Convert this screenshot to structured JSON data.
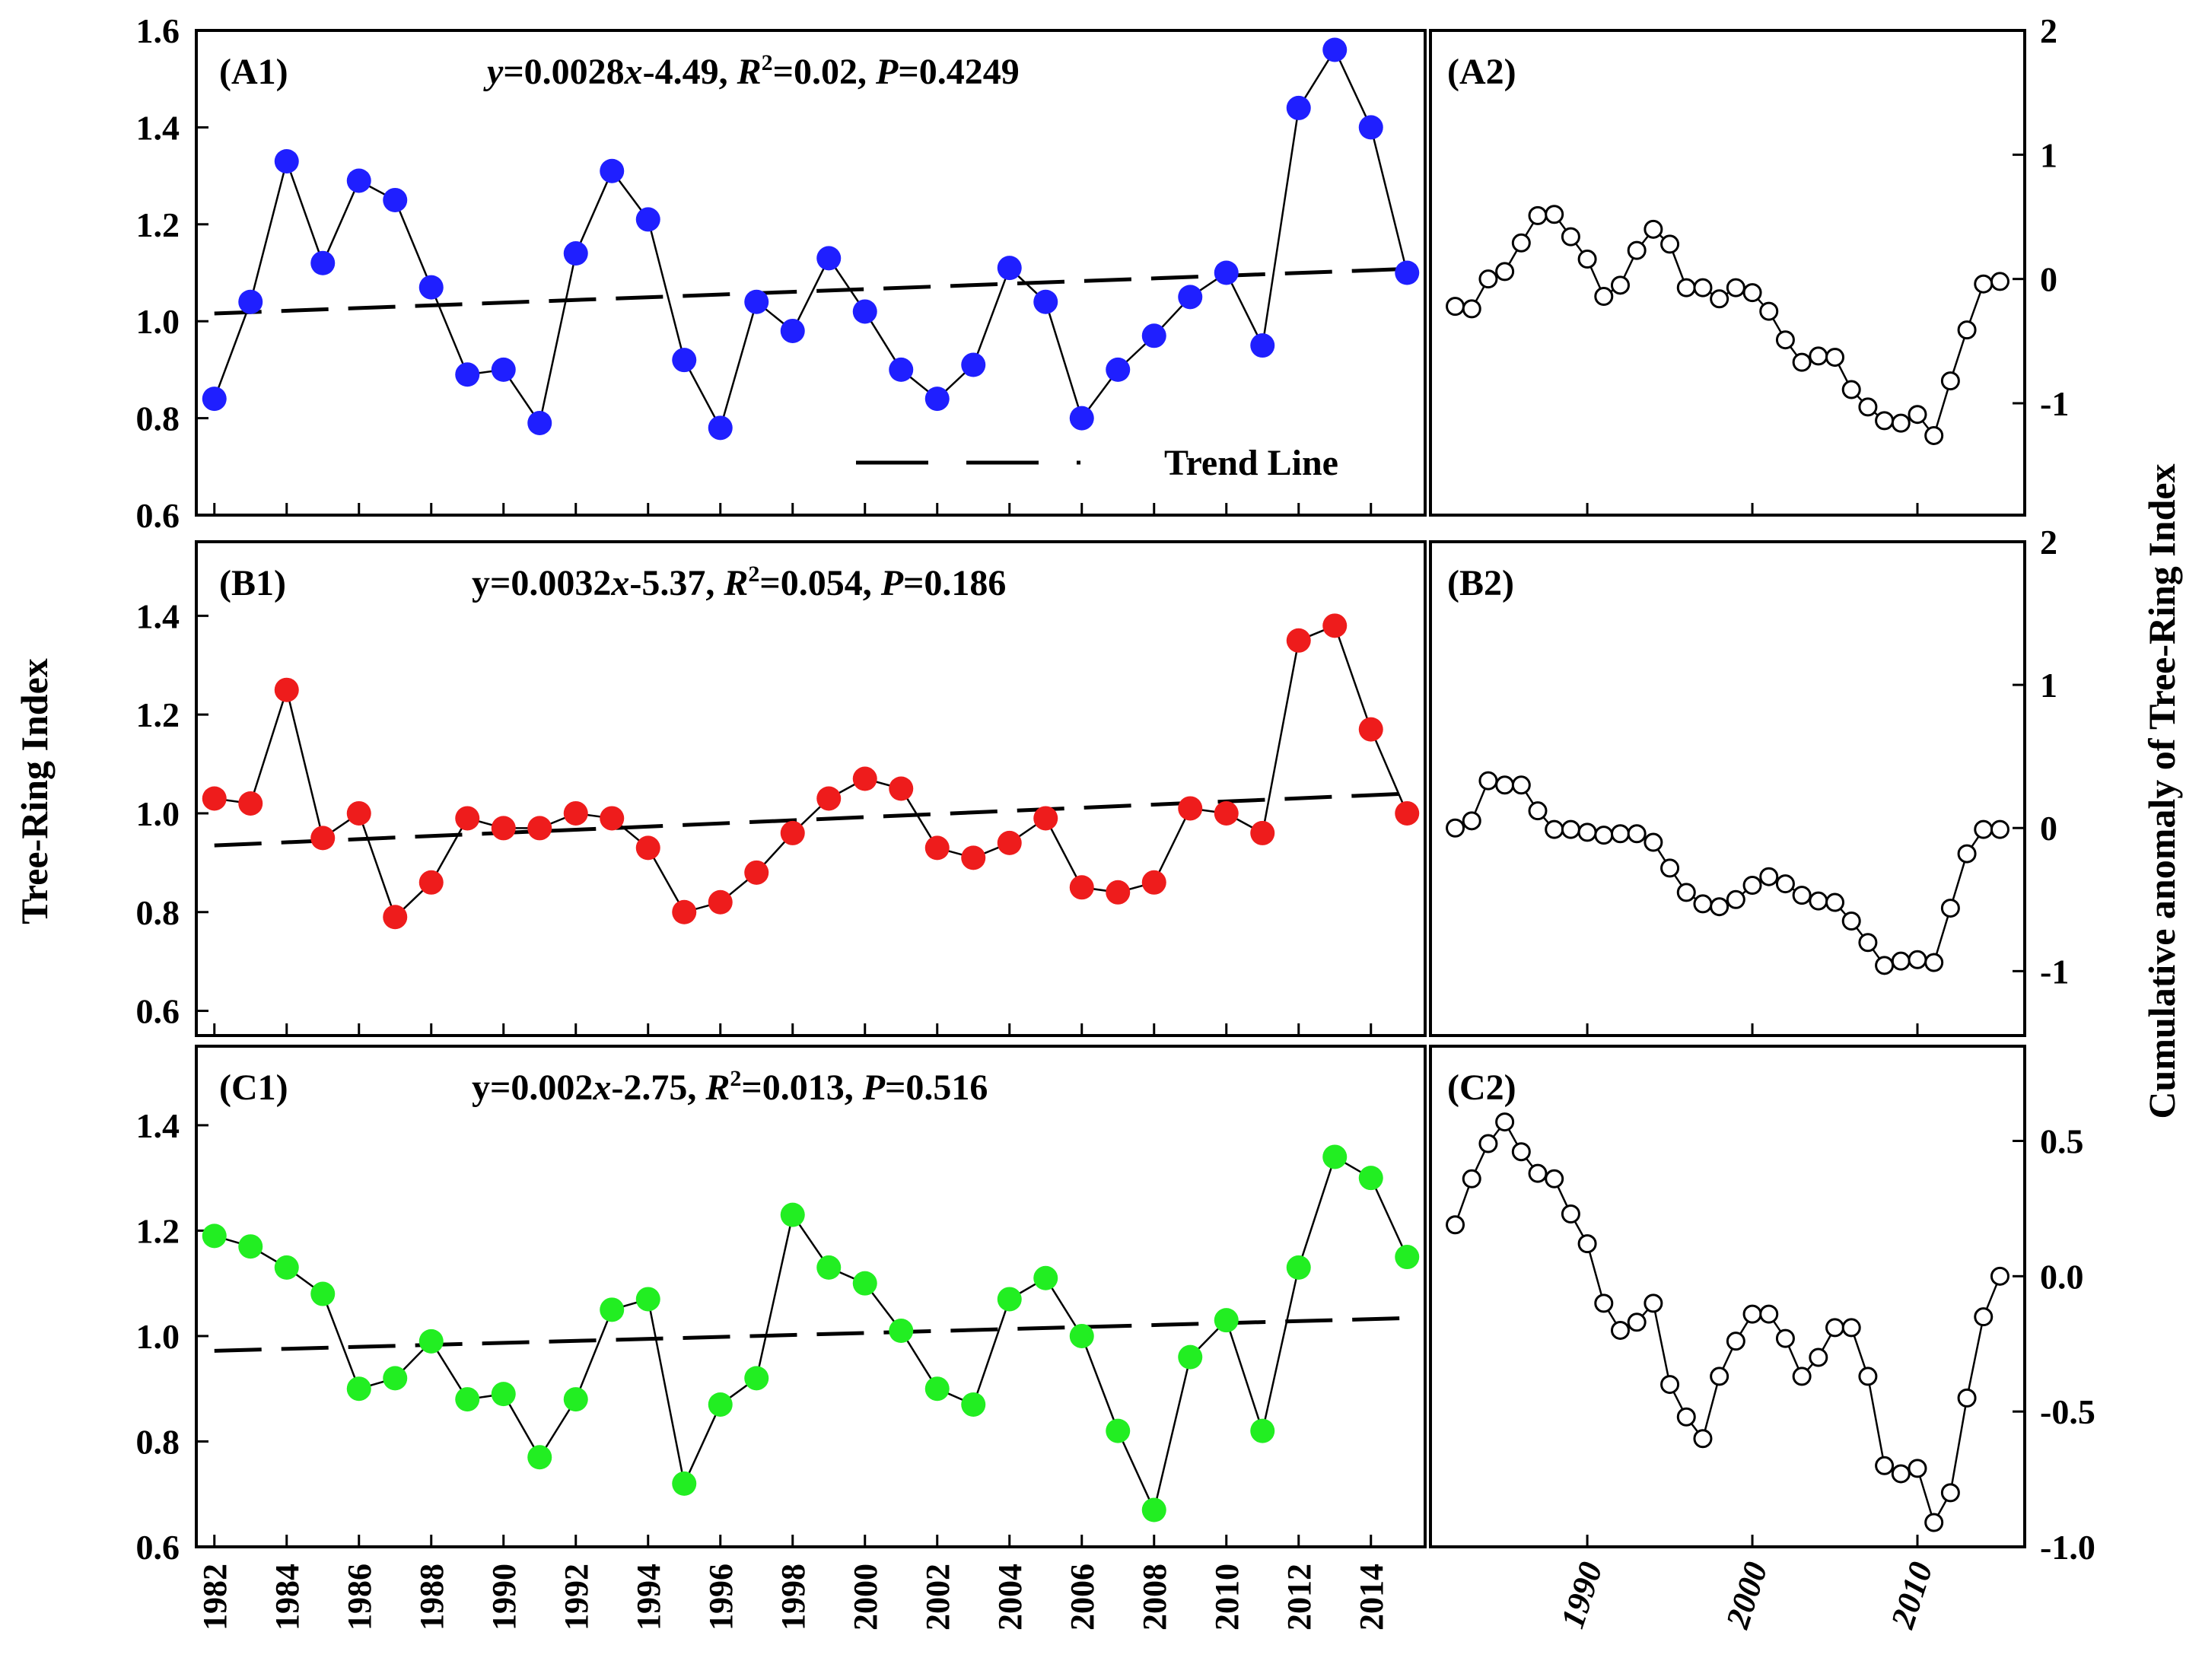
{
  "y_axis_left_title": "Tree-Ring Index",
  "y_axis_right_title": "Cumulative anomaly of Tree-Ring Index",
  "legend": {
    "trend_label": "Trend Line"
  },
  "chart_data": [
    {
      "id": "A1",
      "panel_label": "(A1)",
      "type": "line",
      "equation": {
        "p1": "y",
        "p2": "=0.0028",
        "p3": "x",
        "p4": "-4.49, ",
        "p5": "R",
        "p6": "2",
        "p7": "=0.02, ",
        "p8": "P",
        "p9": "=0.4249"
      },
      "color": "#1f1fff",
      "ylim": [
        0.6,
        1.6
      ],
      "yticks": [
        "0.6",
        "0.8",
        "1.0",
        "1.2",
        "1.4",
        "1.6"
      ],
      "xlim": [
        1981.5,
        2015.5
      ],
      "x": [
        1982,
        1983,
        1984,
        1985,
        1986,
        1987,
        1988,
        1989,
        1990,
        1991,
        1992,
        1993,
        1994,
        1995,
        1996,
        1997,
        1998,
        1999,
        2000,
        2001,
        2002,
        2003,
        2004,
        2005,
        2006,
        2007,
        2008,
        2009,
        2010,
        2011,
        2012,
        2013,
        2014,
        2015
      ],
      "values": [
        0.84,
        1.04,
        1.33,
        1.12,
        1.29,
        1.25,
        1.07,
        0.89,
        0.9,
        0.79,
        1.14,
        1.31,
        1.21,
        0.92,
        0.78,
        1.04,
        0.98,
        1.13,
        1.02,
        0.9,
        0.84,
        0.91,
        1.11,
        1.04,
        0.8,
        0.9,
        0.97,
        1.05,
        1.1,
        0.95,
        1.44,
        1.56,
        1.4,
        1.1
      ],
      "trend": {
        "start": [
          1982,
          1.016
        ],
        "end": [
          2015,
          1.108
        ]
      }
    },
    {
      "id": "B1",
      "panel_label": "(B1)",
      "type": "line",
      "equation": {
        "p1": "y=0.0032",
        "p3": "x",
        "p4": "-5.37, ",
        "p5": "R",
        "p6": "2",
        "p7": "=0.054, ",
        "p8": "P",
        "p9": "=0.186"
      },
      "color": "#ee1c1c",
      "ylim": [
        0.55,
        1.55
      ],
      "yticks": [
        "0.6",
        "0.8",
        "1.0",
        "1.2",
        "1.4"
      ],
      "xlim": [
        1981.5,
        2015.5
      ],
      "x": [
        1982,
        1983,
        1984,
        1985,
        1986,
        1987,
        1988,
        1989,
        1990,
        1991,
        1992,
        1993,
        1994,
        1995,
        1996,
        1997,
        1998,
        1999,
        2000,
        2001,
        2002,
        2003,
        2004,
        2005,
        2006,
        2007,
        2008,
        2009,
        2010,
        2011,
        2012,
        2013,
        2014,
        2015
      ],
      "values": [
        1.03,
        1.02,
        1.25,
        0.95,
        1.0,
        0.79,
        0.86,
        0.99,
        0.97,
        0.97,
        1.0,
        0.99,
        0.93,
        0.8,
        0.82,
        0.88,
        0.96,
        1.03,
        1.07,
        1.05,
        0.93,
        0.91,
        0.94,
        0.99,
        0.85,
        0.84,
        0.86,
        1.01,
        1.0,
        0.96,
        1.35,
        1.38,
        1.17,
        1.0
      ],
      "trend": {
        "start": [
          1982,
          0.935
        ],
        "end": [
          2015,
          1.04
        ]
      }
    },
    {
      "id": "C1",
      "panel_label": "(C1)",
      "type": "line",
      "equation": {
        "p1": "y=0.002",
        "p3": "x",
        "p4": "-2.75, ",
        "p5": "R",
        "p6": "2",
        "p7": "=0.013, ",
        "p8": "P",
        "p9": "=0.516"
      },
      "color": "#22ee22",
      "ylim": [
        0.6,
        1.55
      ],
      "yticks": [
        "0.6",
        "0.8",
        "1.0",
        "1.2",
        "1.4"
      ],
      "xlim": [
        1981.5,
        2015.5
      ],
      "x": [
        1982,
        1983,
        1984,
        1985,
        1986,
        1987,
        1988,
        1989,
        1990,
        1991,
        1992,
        1993,
        1994,
        1995,
        1996,
        1997,
        1998,
        1999,
        2000,
        2001,
        2002,
        2003,
        2004,
        2005,
        2006,
        2007,
        2008,
        2009,
        2010,
        2011,
        2012,
        2013,
        2014,
        2015
      ],
      "values": [
        1.19,
        1.17,
        1.13,
        1.08,
        0.9,
        0.92,
        0.99,
        0.88,
        0.89,
        0.77,
        0.88,
        1.05,
        1.07,
        0.72,
        0.87,
        0.92,
        1.23,
        1.13,
        1.1,
        1.01,
        0.9,
        0.87,
        1.07,
        1.11,
        1.0,
        0.82,
        0.67,
        0.96,
        1.03,
        0.82,
        1.13,
        1.34,
        1.3,
        1.15
      ],
      "trend": {
        "start": [
          1982,
          0.972
        ],
        "end": [
          2015,
          1.034
        ]
      },
      "xticks": [
        "1982",
        "1984",
        "1986",
        "1988",
        "1990",
        "1992",
        "1994",
        "1996",
        "1998",
        "2000",
        "2002",
        "2004",
        "2006",
        "2008",
        "2010",
        "2012",
        "2014"
      ]
    },
    {
      "id": "A2",
      "panel_label": "(A2)",
      "type": "line",
      "ylim": [
        -1.9,
        2.0
      ],
      "yticks": [
        "-1",
        "0",
        "1",
        "2"
      ],
      "xlim": [
        1980.5,
        2016.5
      ],
      "x": [
        1982,
        1983,
        1984,
        1985,
        1986,
        1987,
        1988,
        1989,
        1990,
        1991,
        1992,
        1993,
        1994,
        1995,
        1996,
        1997,
        1998,
        1999,
        2000,
        2001,
        2002,
        2003,
        2004,
        2005,
        2006,
        2007,
        2008,
        2009,
        2010,
        2011,
        2012,
        2013,
        2014,
        2015
      ],
      "values": [
        -0.22,
        -0.24,
        0.0,
        0.06,
        0.29,
        0.51,
        0.52,
        0.34,
        0.16,
        -0.14,
        -0.05,
        0.23,
        0.4,
        0.28,
        -0.07,
        -0.07,
        -0.16,
        -0.07,
        -0.11,
        -0.26,
        -0.49,
        -0.67,
        -0.62,
        -0.63,
        -0.89,
        -1.03,
        -1.14,
        -1.16,
        -1.09,
        -1.26,
        -0.82,
        -0.41,
        -0.04,
        -0.02
      ]
    },
    {
      "id": "B2",
      "panel_label": "(B2)",
      "type": "line",
      "ylim": [
        -1.45,
        2.0
      ],
      "yticks": [
        "-1",
        "0",
        "1",
        "2"
      ],
      "xlim": [
        1980.5,
        2016.5
      ],
      "x": [
        1982,
        1983,
        1984,
        1985,
        1986,
        1987,
        1988,
        1989,
        1990,
        1991,
        1992,
        1993,
        1994,
        1995,
        1996,
        1997,
        1998,
        1999,
        2000,
        2001,
        2002,
        2003,
        2004,
        2005,
        2006,
        2007,
        2008,
        2009,
        2010,
        2011,
        2012,
        2013,
        2014,
        2015
      ],
      "values": [
        0.0,
        0.05,
        0.33,
        0.3,
        0.3,
        0.12,
        -0.01,
        -0.01,
        -0.03,
        -0.05,
        -0.04,
        -0.04,
        -0.1,
        -0.28,
        -0.45,
        -0.53,
        -0.55,
        -0.5,
        -0.4,
        -0.34,
        -0.39,
        -0.47,
        -0.51,
        -0.52,
        -0.65,
        -0.8,
        -0.96,
        -0.93,
        -0.92,
        -0.94,
        -0.56,
        -0.18,
        -0.01,
        -0.01
      ]
    },
    {
      "id": "C2",
      "panel_label": "(C2)",
      "type": "line",
      "ylim": [
        -1.0,
        0.85
      ],
      "yticks": [
        "-1.0",
        "-0.5",
        "0.0",
        "0.5"
      ],
      "xlim": [
        1980.5,
        2016.5
      ],
      "xticks": [
        "1990",
        "2000",
        "2010"
      ],
      "x": [
        1982,
        1983,
        1984,
        1985,
        1986,
        1987,
        1988,
        1989,
        1990,
        1991,
        1992,
        1993,
        1994,
        1995,
        1996,
        1997,
        1998,
        1999,
        2000,
        2001,
        2002,
        2003,
        2004,
        2005,
        2006,
        2007,
        2008,
        2009,
        2010,
        2011,
        2012,
        2013,
        2014,
        2015
      ],
      "values": [
        0.19,
        0.36,
        0.49,
        0.57,
        0.46,
        0.38,
        0.36,
        0.23,
        0.12,
        -0.1,
        -0.2,
        -0.17,
        -0.1,
        -0.4,
        -0.52,
        -0.6,
        -0.37,
        -0.24,
        -0.14,
        -0.14,
        -0.23,
        -0.37,
        -0.3,
        -0.19,
        -0.19,
        -0.37,
        -0.7,
        -0.73,
        -0.71,
        -0.91,
        -0.8,
        -0.45,
        -0.15,
        0.0
      ]
    }
  ]
}
